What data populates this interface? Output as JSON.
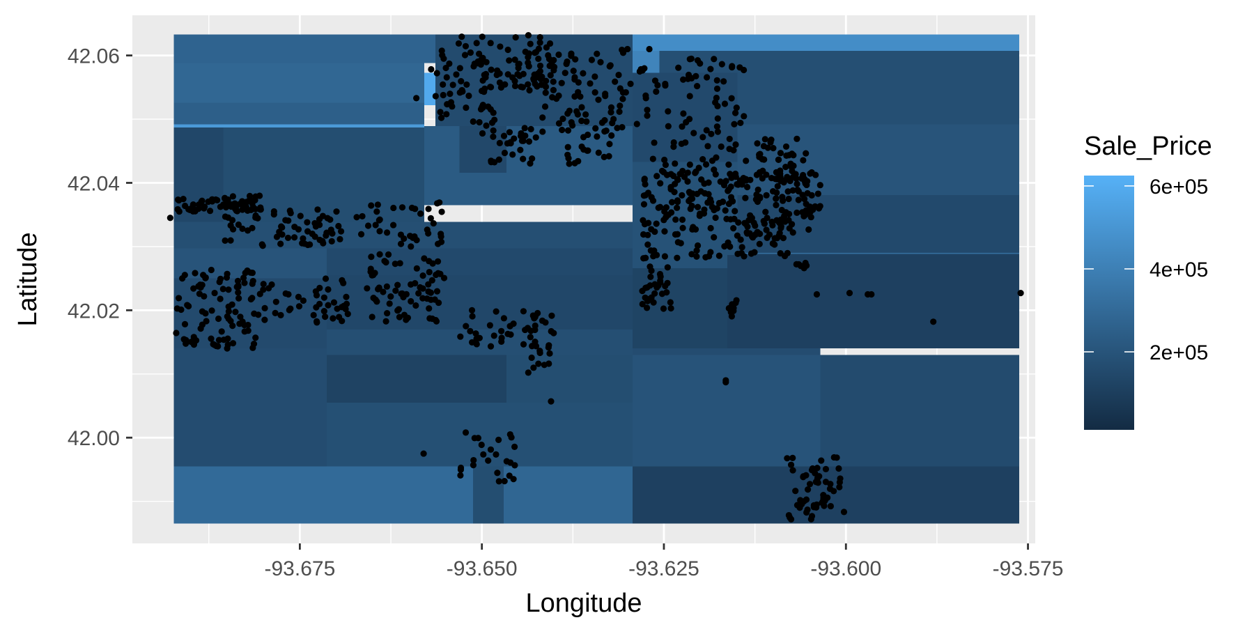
{
  "chart_data": {
    "type": "heatmap",
    "subtype": "prediction surface with scatter overlay",
    "title": "",
    "xlabel": "Longitude",
    "ylabel": "Latitude",
    "xlim": [
      -93.698,
      -93.574
    ],
    "ylim": [
      41.9834,
      42.0663
    ],
    "x_ticks": [
      -93.675,
      -93.65,
      -93.625,
      -93.6,
      -93.575
    ],
    "x_tick_labels": [
      "-93.675",
      "-93.650",
      "-93.625",
      "-93.600",
      "-93.575"
    ],
    "y_ticks": [
      42.0,
      42.02,
      42.04,
      42.06
    ],
    "y_tick_labels": [
      "42.00",
      "42.02",
      "42.04",
      "42.06"
    ],
    "grid": true,
    "legend": {
      "title": "Sale_Price",
      "position": "right",
      "min": 12000,
      "max": 625000,
      "breaks": [
        200000,
        400000,
        600000
      ],
      "labels": [
        "2e+05",
        "4e+05",
        "6e+05"
      ],
      "low_color": "#132B43",
      "high_color": "#56B1F7"
    },
    "colors": {
      "panel": "#EBEBEB",
      "grid": "#FFFFFF",
      "points": "#000000"
    },
    "surface_cells": [
      {
        "lon": [
          -93.6923,
          -93.6293
        ],
        "lat": [
          42.0588,
          42.0633
        ],
        "price": 270000
      },
      {
        "lon": [
          -93.6293,
          -93.5762
        ],
        "lat": [
          42.0607,
          42.0633
        ],
        "price": 460000
      },
      {
        "lon": [
          -93.6923,
          -93.6579
        ],
        "lat": [
          42.0526,
          42.0588
        ],
        "price": 285000
      },
      {
        "lon": [
          -93.6923,
          -93.6579
        ],
        "lat": [
          42.0492,
          42.0526
        ],
        "price": 250000
      },
      {
        "lon": [
          -93.6923,
          -93.6579
        ],
        "lat": [
          42.0487,
          42.0492
        ],
        "price": 520000
      },
      {
        "lon": [
          -93.6579,
          -93.6564
        ],
        "lat": [
          42.0522,
          42.0573
        ],
        "price": 590000
      },
      {
        "lon": [
          -93.6564,
          -93.6293
        ],
        "lat": [
          42.0489,
          42.0633
        ],
        "price": 160000
      },
      {
        "lon": [
          -93.6293,
          -93.6256
        ],
        "lat": [
          42.0573,
          42.0607
        ],
        "price": 420000
      },
      {
        "lon": [
          -93.6256,
          -93.5762
        ],
        "lat": [
          42.0492,
          42.0607
        ],
        "price": 175000
      },
      {
        "lon": [
          -93.6293,
          -93.6149
        ],
        "lat": [
          42.0433,
          42.0573
        ],
        "price": 150000
      },
      {
        "lon": [
          -93.6923,
          -93.6855
        ],
        "lat": [
          42.0308,
          42.0487
        ],
        "price": 140000
      },
      {
        "lon": [
          -93.6855,
          -93.6579
        ],
        "lat": [
          42.0339,
          42.0487
        ],
        "price": 170000
      },
      {
        "lon": [
          -93.6579,
          -93.6293
        ],
        "lat": [
          42.0365,
          42.0489
        ],
        "price": 230000
      },
      {
        "lon": [
          -93.6531,
          -93.6466
        ],
        "lat": [
          42.0416,
          42.0489
        ],
        "price": 145000
      },
      {
        "lon": [
          -93.6149,
          -93.5762
        ],
        "lat": [
          42.0381,
          42.0492
        ],
        "price": 200000
      },
      {
        "lon": [
          -93.6149,
          -93.5762
        ],
        "lat": [
          42.0287,
          42.0381
        ],
        "price": 150000
      },
      {
        "lon": [
          -93.6256,
          -93.5762
        ],
        "lat": [
          42.0289,
          42.029
        ],
        "price": 380000
      },
      {
        "lon": [
          -93.6293,
          -93.6149
        ],
        "lat": [
          42.0266,
          42.0433
        ],
        "price": 190000
      },
      {
        "lon": [
          -93.6923,
          -93.6293
        ],
        "lat": [
          42.0297,
          42.0339
        ],
        "price": 175000
      },
      {
        "lon": [
          -93.6713,
          -93.6293
        ],
        "lat": [
          42.0255,
          42.0297
        ],
        "price": 150000
      },
      {
        "lon": [
          -93.6923,
          -93.6713
        ],
        "lat": [
          42.025,
          42.0297
        ],
        "price": 200000
      },
      {
        "lon": [
          -93.6923,
          -93.6713
        ],
        "lat": [
          42.014,
          42.025
        ],
        "price": 155000
      },
      {
        "lon": [
          -93.6713,
          -93.6293
        ],
        "lat": [
          42.017,
          42.0255
        ],
        "price": 140000
      },
      {
        "lon": [
          -93.6293,
          -93.6163
        ],
        "lat": [
          42.014,
          42.0266
        ],
        "price": 125000
      },
      {
        "lon": [
          -93.6163,
          -93.5762
        ],
        "lat": [
          42.014,
          42.0287
        ],
        "price": 110000
      },
      {
        "lon": [
          -93.6923,
          -93.6713
        ],
        "lat": [
          41.9955,
          42.014
        ],
        "price": 165000
      },
      {
        "lon": [
          -93.6713,
          -93.6293
        ],
        "lat": [
          42.013,
          42.017
        ],
        "price": 175000
      },
      {
        "lon": [
          -93.6713,
          -93.6466
        ],
        "lat": [
          42.0055,
          42.013
        ],
        "price": 120000
      },
      {
        "lon": [
          -93.6466,
          -93.6293
        ],
        "lat": [
          42.0055,
          42.013
        ],
        "price": 170000
      },
      {
        "lon": [
          -93.6293,
          -93.6035
        ],
        "lat": [
          42.013,
          42.014
        ],
        "price": 165000
      },
      {
        "lon": [
          -93.6293,
          -93.6035
        ],
        "lat": [
          41.9955,
          42.013
        ],
        "price": 195000
      },
      {
        "lon": [
          -93.6035,
          -93.5762
        ],
        "lat": [
          41.9955,
          42.013
        ],
        "price": 160000
      },
      {
        "lon": [
          -93.6713,
          -93.6293
        ],
        "lat": [
          41.9955,
          42.0055
        ],
        "price": 180000
      },
      {
        "lon": [
          -93.6923,
          -93.6512
        ],
        "lat": [
          41.9865,
          41.9955
        ],
        "price": 300000
      },
      {
        "lon": [
          -93.6512,
          -93.647
        ],
        "lat": [
          41.9865,
          41.9955
        ],
        "price": 170000
      },
      {
        "lon": [
          -93.647,
          -93.6293
        ],
        "lat": [
          41.9865,
          41.9955
        ],
        "price": 280000
      },
      {
        "lon": [
          -93.6293,
          -93.5762
        ],
        "lat": [
          41.9865,
          41.9955
        ],
        "price": 110000
      }
    ],
    "point_clusters": [
      {
        "lon": [
          -93.692,
          -93.68
        ],
        "lat": [
          42.0355,
          42.038
        ],
        "count": 60
      },
      {
        "lon": [
          -93.686,
          -93.666
        ],
        "lat": [
          42.03,
          42.036
        ],
        "count": 70
      },
      {
        "lon": [
          -93.666,
          -93.655
        ],
        "lat": [
          42.03,
          42.037
        ],
        "count": 35
      },
      {
        "lon": [
          -93.692,
          -93.681
        ],
        "lat": [
          42.014,
          42.0265
        ],
        "count": 90
      },
      {
        "lon": [
          -93.681,
          -93.668
        ],
        "lat": [
          42.018,
          42.025
        ],
        "count": 45
      },
      {
        "lon": [
          -93.666,
          -93.655
        ],
        "lat": [
          42.018,
          42.029
        ],
        "count": 70
      },
      {
        "lon": [
          -93.657,
          -93.648
        ],
        "lat": [
          42.049,
          42.063
        ],
        "count": 65
      },
      {
        "lon": [
          -93.648,
          -93.64
        ],
        "lat": [
          42.0545,
          42.0633
        ],
        "count": 60
      },
      {
        "lon": [
          -93.642,
          -93.628
        ],
        "lat": [
          42.048,
          42.061
        ],
        "count": 70
      },
      {
        "lon": [
          -93.65,
          -93.642
        ],
        "lat": [
          42.043,
          42.049
        ],
        "count": 30
      },
      {
        "lon": [
          -93.639,
          -93.632
        ],
        "lat": [
          42.043,
          42.05
        ],
        "count": 25
      },
      {
        "lon": [
          -93.628,
          -93.614
        ],
        "lat": [
          42.034,
          42.06
        ],
        "count": 110
      },
      {
        "lon": [
          -93.628,
          -93.608
        ],
        "lat": [
          42.028,
          42.042
        ],
        "count": 170
      },
      {
        "lon": [
          -93.614,
          -93.604
        ],
        "lat": [
          42.032,
          42.047
        ],
        "count": 85
      },
      {
        "lon": [
          -93.609,
          -93.603
        ],
        "lat": [
          42.034,
          42.041
        ],
        "count": 30
      },
      {
        "lon": [
          -93.628,
          -93.624
        ],
        "lat": [
          42.02,
          42.027
        ],
        "count": 30
      },
      {
        "lon": [
          -93.653,
          -93.64
        ],
        "lat": [
          42.014,
          42.02
        ],
        "count": 45
      },
      {
        "lon": [
          -93.644,
          -93.64
        ],
        "lat": [
          42.01,
          42.017
        ],
        "count": 10
      },
      {
        "lon": [
          -93.653,
          -93.645
        ],
        "lat": [
          41.993,
          42.001
        ],
        "count": 25
      },
      {
        "lon": [
          -93.609,
          -93.6
        ],
        "lat": [
          41.987,
          41.997
        ],
        "count": 60
      },
      {
        "lon": [
          -93.618,
          -93.614
        ],
        "lat": [
          42.019,
          42.022
        ],
        "count": 8
      },
      {
        "lon": [
          -93.607,
          -93.604
        ],
        "lat": [
          42.0265,
          42.0275
        ],
        "count": 6
      }
    ],
    "points": [
      {
        "x": -93.6928,
        "y": 42.0345
      },
      {
        "x": -93.658,
        "y": 41.9975
      },
      {
        "x": -93.6405,
        "y": 42.0057
      },
      {
        "x": -93.6165,
        "y": 42.009
      },
      {
        "x": -93.6165,
        "y": 42.0087
      },
      {
        "x": -93.604,
        "y": 42.0225
      },
      {
        "x": -93.5995,
        "y": 42.0227
      },
      {
        "x": -93.597,
        "y": 42.0225
      },
      {
        "x": -93.5965,
        "y": 42.0225
      },
      {
        "x": -93.588,
        "y": 42.0182
      },
      {
        "x": -93.576,
        "y": 42.0227
      },
      {
        "x": -93.659,
        "y": 42.0533
      },
      {
        "x": -93.63,
        "y": 42.061
      },
      {
        "x": -93.627,
        "y": 42.061
      },
      {
        "x": -93.638,
        "y": 42.043
      },
      {
        "x": -93.653,
        "y": 42.058
      }
    ]
  }
}
